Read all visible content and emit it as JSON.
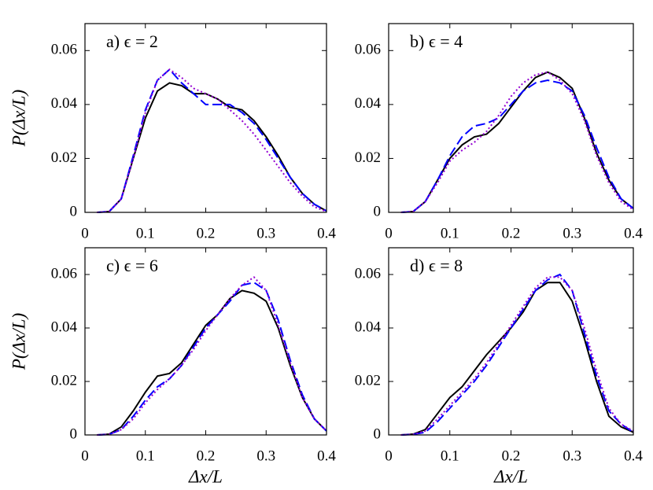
{
  "chart_data": [
    {
      "type": "line",
      "annotation": "a) ϵ = 2",
      "ylabel": "P(Δx/L)",
      "x": [
        0.02,
        0.04,
        0.06,
        0.08,
        0.1,
        0.12,
        0.14,
        0.16,
        0.18,
        0.2,
        0.22,
        0.24,
        0.26,
        0.28,
        0.3,
        0.32,
        0.34,
        0.36,
        0.38,
        0.4
      ],
      "series": [
        {
          "color": "#000000",
          "line_style": "solid",
          "values": [
            0,
            0.0003,
            0.005,
            0.02,
            0.035,
            0.045,
            0.048,
            0.047,
            0.044,
            0.044,
            0.042,
            0.039,
            0.038,
            0.034,
            0.028,
            0.021,
            0.013,
            0.007,
            0.003,
            0.0005
          ]
        },
        {
          "color": "#0000ff",
          "line_style": "dashed",
          "values": [
            0,
            0.0003,
            0.005,
            0.021,
            0.038,
            0.049,
            0.053,
            0.048,
            0.044,
            0.04,
            0.04,
            0.04,
            0.037,
            0.033,
            0.027,
            0.02,
            0.013,
            0.007,
            0.003,
            0.0005
          ]
        },
        {
          "color": "#9400d3",
          "line_style": "dotted",
          "values": [
            0,
            0.0003,
            0.005,
            0.02,
            0.037,
            0.049,
            0.053,
            0.05,
            0.046,
            0.044,
            0.042,
            0.038,
            0.034,
            0.029,
            0.023,
            0.017,
            0.011,
            0.006,
            0.002,
            0.0003
          ]
        }
      ],
      "xlim": [
        0,
        0.4
      ],
      "ylim": [
        0,
        0.07
      ],
      "xticks": [
        0,
        0.1,
        0.2,
        0.3,
        0.4
      ],
      "yticks": [
        0,
        0.02,
        0.04,
        0.06
      ]
    },
    {
      "type": "line",
      "annotation": "b) ϵ = 4",
      "x": [
        0.02,
        0.04,
        0.06,
        0.08,
        0.1,
        0.12,
        0.14,
        0.16,
        0.18,
        0.2,
        0.22,
        0.24,
        0.26,
        0.28,
        0.3,
        0.32,
        0.34,
        0.36,
        0.38,
        0.4
      ],
      "series": [
        {
          "color": "#000000",
          "line_style": "solid",
          "values": [
            0,
            0.0003,
            0.004,
            0.012,
            0.02,
            0.025,
            0.028,
            0.029,
            0.033,
            0.039,
            0.045,
            0.05,
            0.052,
            0.05,
            0.046,
            0.035,
            0.022,
            0.012,
            0.005,
            0.0015
          ]
        },
        {
          "color": "#0000ff",
          "line_style": "dashed",
          "values": [
            0,
            0.0003,
            0.004,
            0.012,
            0.021,
            0.028,
            0.032,
            0.033,
            0.035,
            0.04,
            0.045,
            0.048,
            0.049,
            0.048,
            0.045,
            0.036,
            0.024,
            0.013,
            0.005,
            0.0015
          ]
        },
        {
          "color": "#9400d3",
          "line_style": "dotted",
          "values": [
            0,
            0.0003,
            0.004,
            0.011,
            0.019,
            0.023,
            0.026,
            0.03,
            0.036,
            0.043,
            0.048,
            0.051,
            0.052,
            0.049,
            0.044,
            0.034,
            0.021,
            0.011,
            0.004,
            0.001
          ]
        }
      ],
      "xlim": [
        0,
        0.4
      ],
      "ylim": [
        0,
        0.07
      ],
      "xticks": [
        0,
        0.1,
        0.2,
        0.3,
        0.4
      ],
      "yticks": [
        0,
        0.02,
        0.04,
        0.06
      ]
    },
    {
      "type": "line",
      "annotation": "c) ϵ = 6",
      "ylabel": "P(Δx/L)",
      "xlabel": "Δx/L",
      "x": [
        0.02,
        0.04,
        0.06,
        0.08,
        0.1,
        0.12,
        0.14,
        0.16,
        0.18,
        0.2,
        0.22,
        0.24,
        0.26,
        0.28,
        0.3,
        0.32,
        0.34,
        0.36,
        0.38,
        0.4
      ],
      "series": [
        {
          "color": "#000000",
          "line_style": "solid",
          "values": [
            0,
            0.0003,
            0.003,
            0.009,
            0.016,
            0.022,
            0.023,
            0.027,
            0.034,
            0.041,
            0.045,
            0.051,
            0.054,
            0.053,
            0.05,
            0.04,
            0.026,
            0.014,
            0.006,
            0.0015
          ]
        },
        {
          "color": "#0000ff",
          "line_style": "dashed",
          "values": [
            0,
            0.0002,
            0.002,
            0.007,
            0.013,
            0.018,
            0.021,
            0.026,
            0.033,
            0.04,
            0.045,
            0.05,
            0.056,
            0.057,
            0.054,
            0.043,
            0.028,
            0.015,
            0.006,
            0.0015
          ]
        },
        {
          "color": "#9400d3",
          "line_style": "dotted",
          "values": [
            0,
            0.0002,
            0.002,
            0.006,
            0.012,
            0.017,
            0.021,
            0.026,
            0.032,
            0.039,
            0.045,
            0.051,
            0.056,
            0.059,
            0.054,
            0.041,
            0.027,
            0.014,
            0.006,
            0.0015
          ]
        }
      ],
      "xlim": [
        0,
        0.4
      ],
      "ylim": [
        0,
        0.07
      ],
      "xticks": [
        0,
        0.1,
        0.2,
        0.3,
        0.4
      ],
      "yticks": [
        0,
        0.02,
        0.04,
        0.06
      ]
    },
    {
      "type": "line",
      "annotation": "d) ϵ = 8",
      "xlabel": "Δx/L",
      "x": [
        0.02,
        0.04,
        0.06,
        0.08,
        0.1,
        0.12,
        0.14,
        0.16,
        0.18,
        0.2,
        0.22,
        0.24,
        0.26,
        0.28,
        0.3,
        0.32,
        0.34,
        0.36,
        0.38,
        0.4
      ],
      "series": [
        {
          "color": "#000000",
          "line_style": "solid",
          "values": [
            0,
            0.0003,
            0.002,
            0.008,
            0.014,
            0.018,
            0.024,
            0.03,
            0.035,
            0.04,
            0.046,
            0.054,
            0.057,
            0.057,
            0.05,
            0.036,
            0.02,
            0.007,
            0.003,
            0.001
          ]
        },
        {
          "color": "#0000ff",
          "line_style": "dashed",
          "values": [
            0,
            0.0002,
            0.001,
            0.005,
            0.01,
            0.015,
            0.02,
            0.026,
            0.033,
            0.04,
            0.047,
            0.054,
            0.058,
            0.06,
            0.054,
            0.038,
            0.022,
            0.009,
            0.004,
            0.001
          ]
        },
        {
          "color": "#9400d3",
          "line_style": "dotted",
          "values": [
            0,
            0.0002,
            0.0015,
            0.006,
            0.011,
            0.016,
            0.021,
            0.027,
            0.034,
            0.041,
            0.048,
            0.055,
            0.059,
            0.059,
            0.054,
            0.04,
            0.024,
            0.01,
            0.004,
            0.0015
          ]
        }
      ],
      "xlim": [
        0,
        0.4
      ],
      "ylim": [
        0,
        0.07
      ],
      "xticks": [
        0,
        0.1,
        0.2,
        0.3,
        0.4
      ],
      "yticks": [
        0,
        0.02,
        0.04,
        0.06
      ]
    }
  ]
}
